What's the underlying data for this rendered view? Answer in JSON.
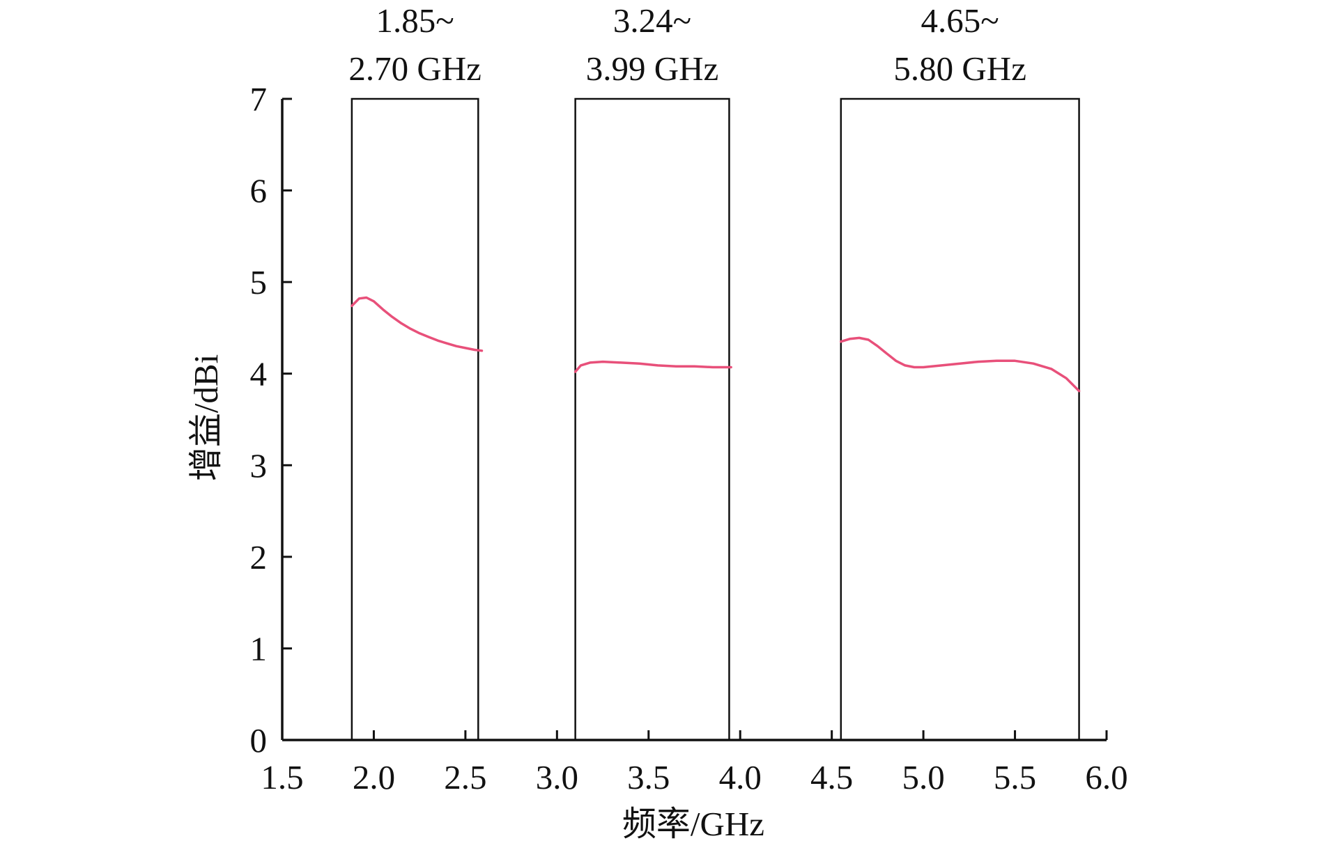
{
  "chart_data": {
    "type": "line",
    "title": "",
    "xlabel": "频率/GHz",
    "ylabel": "增益/dBi",
    "xlim": [
      1.5,
      6.0
    ],
    "ylim": [
      0,
      7
    ],
    "xticks": [
      1.5,
      2.0,
      2.5,
      3.0,
      3.5,
      4.0,
      4.5,
      5.0,
      5.5,
      6.0
    ],
    "xtick_labels": [
      "1.5",
      "2.0",
      "2.5",
      "3.0",
      "3.5",
      "4.0",
      "4.5",
      "5.0",
      "5.5",
      "6.0"
    ],
    "yticks": [
      0,
      1,
      2,
      3,
      4,
      5,
      6,
      7
    ],
    "ytick_labels": [
      "0",
      "1",
      "2",
      "3",
      "4",
      "5",
      "6",
      "7"
    ],
    "grid": false,
    "legend": false,
    "line_color": "#e8507a",
    "frame_color": "#111111",
    "bands": [
      {
        "label_line1": "1.85~",
        "label_line2": "2.70 GHz",
        "x_start": 1.88,
        "x_end": 2.57,
        "points": [
          [
            1.88,
            4.74
          ],
          [
            1.92,
            4.82
          ],
          [
            1.96,
            4.83
          ],
          [
            2.0,
            4.79
          ],
          [
            2.05,
            4.7
          ],
          [
            2.1,
            4.62
          ],
          [
            2.15,
            4.55
          ],
          [
            2.2,
            4.49
          ],
          [
            2.25,
            4.44
          ],
          [
            2.3,
            4.4
          ],
          [
            2.35,
            4.36
          ],
          [
            2.4,
            4.33
          ],
          [
            2.45,
            4.3
          ],
          [
            2.5,
            4.28
          ],
          [
            2.55,
            4.26
          ],
          [
            2.59,
            4.25
          ]
        ]
      },
      {
        "label_line1": "3.24~",
        "label_line2": "3.99 GHz",
        "x_start": 3.1,
        "x_end": 3.94,
        "points": [
          [
            3.1,
            4.02
          ],
          [
            3.13,
            4.09
          ],
          [
            3.18,
            4.12
          ],
          [
            3.25,
            4.13
          ],
          [
            3.35,
            4.12
          ],
          [
            3.45,
            4.11
          ],
          [
            3.55,
            4.09
          ],
          [
            3.65,
            4.08
          ],
          [
            3.75,
            4.08
          ],
          [
            3.85,
            4.07
          ],
          [
            3.95,
            4.07
          ]
        ]
      },
      {
        "label_line1": "4.65~",
        "label_line2": "5.80 GHz",
        "x_start": 4.55,
        "x_end": 5.85,
        "points": [
          [
            4.55,
            4.35
          ],
          [
            4.6,
            4.38
          ],
          [
            4.65,
            4.39
          ],
          [
            4.7,
            4.37
          ],
          [
            4.75,
            4.3
          ],
          [
            4.8,
            4.22
          ],
          [
            4.85,
            4.14
          ],
          [
            4.9,
            4.09
          ],
          [
            4.95,
            4.07
          ],
          [
            5.0,
            4.07
          ],
          [
            5.1,
            4.09
          ],
          [
            5.2,
            4.11
          ],
          [
            5.3,
            4.13
          ],
          [
            5.4,
            4.14
          ],
          [
            5.5,
            4.14
          ],
          [
            5.6,
            4.11
          ],
          [
            5.7,
            4.05
          ],
          [
            5.78,
            3.95
          ],
          [
            5.85,
            3.81
          ]
        ]
      }
    ]
  }
}
